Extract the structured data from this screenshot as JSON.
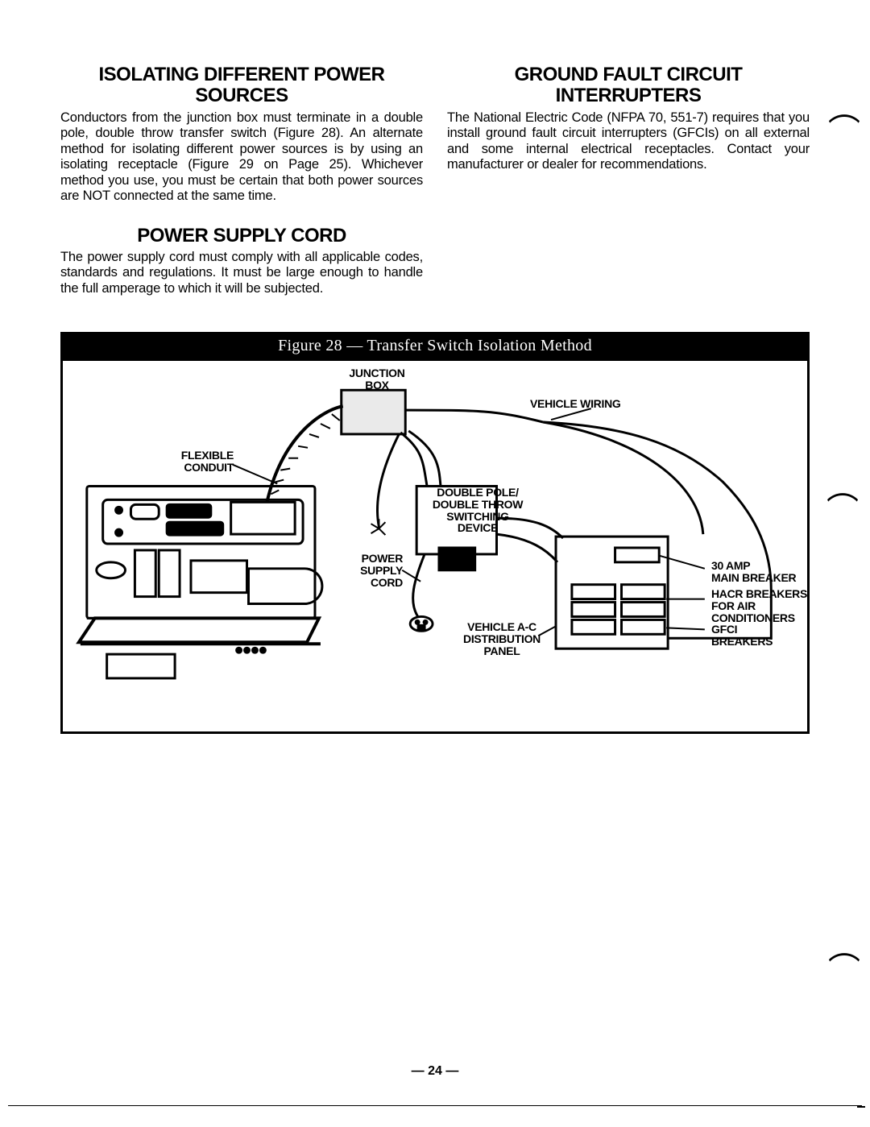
{
  "page_number_text": "— 24 —",
  "left_column": {
    "section1": {
      "heading": "ISOLATING DIFFERENT POWER SOURCES",
      "body": "Conductors from the junction box must terminate in a double pole, double throw transfer switch (Figure 28). An alternate method for isolating different power sources is by using an isolating receptacle (Figure 29 on Page 25). Whichever method you use, you must be certain that both power sources are NOT connected at the same time."
    },
    "section2": {
      "heading": "POWER SUPPLY CORD",
      "body": "The power supply cord must comply with all applicable codes, standards and regulations. It must be large enough to handle the full amperage to which it will be subjected."
    }
  },
  "right_column": {
    "section1": {
      "heading": "GROUND FAULT CIRCUIT INTERRUPTERS",
      "body": "The National Electric Code (NFPA 70, 551-7) requires that you install ground fault circuit interrupters (GFCIs) on all external and some internal electrical receptacles. Contact your manufacturer or dealer for recommendations."
    }
  },
  "figure": {
    "title": "Figure 28 — Transfer Switch Isolation Method",
    "labels": {
      "junction_box": "JUNCTION\nBOX",
      "vehicle_wiring": "VEHICLE WIRING",
      "flexible_conduit": "FLEXIBLE\nCONDUIT",
      "dpdt": "DOUBLE POLE/\nDOUBLE THROW\nSWITCHING\nDEVICE",
      "power_supply_cord": "POWER\nSUPPLY\nCORD",
      "main_breaker": "30 AMP\nMAIN BREAKER",
      "hacr": "HACR BREAKERS\nFOR AIR\nCONDITIONERS",
      "gfci": "GFCI\nBREAKERS",
      "dist_panel": "VEHICLE A-C\nDISTRIBUTION\nPANEL"
    },
    "style": {
      "line_color": "#000000",
      "stroke_thin": 2,
      "stroke_med": 3,
      "stroke_thick": 4
    }
  }
}
